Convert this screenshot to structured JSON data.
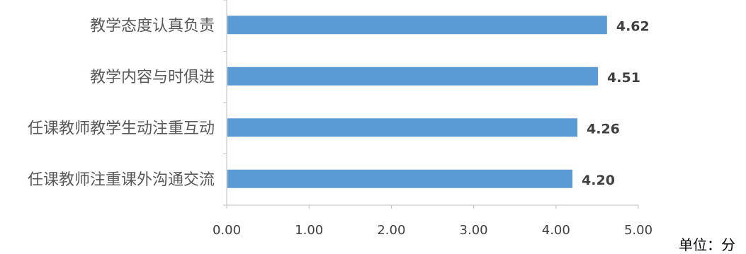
{
  "chart_data": {
    "type": "bar",
    "orientation": "horizontal",
    "categories": [
      "教学态度认真负责",
      "教学内容与时俱进",
      "任课教师教学生动注重互动",
      "任课教师注重课外沟通交流"
    ],
    "values": [
      4.62,
      4.51,
      4.26,
      4.2
    ],
    "data_labels": [
      "4.62",
      "4.51",
      "4.26",
      "4.20"
    ],
    "x_ticks": [
      "0.00",
      "1.00",
      "2.00",
      "3.00",
      "4.00",
      "5.00"
    ],
    "xlim": [
      0,
      5
    ],
    "grid": false,
    "bar_color": "#5b9bd5",
    "unit_note": "单位：分"
  }
}
